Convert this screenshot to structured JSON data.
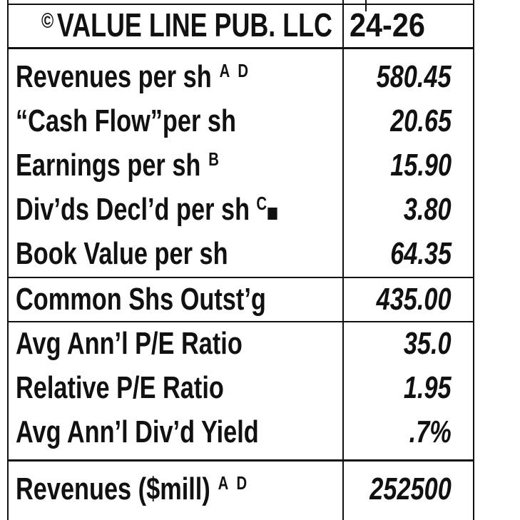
{
  "header": {
    "copyright_symbol": "©",
    "publisher": "VALUE LINE PUB. LLC",
    "period": "24-26"
  },
  "rows": [
    {
      "label": "Revenues per sh",
      "note": "A D",
      "value": "580.45"
    },
    {
      "label": "“Cash Flow”per sh",
      "note": "",
      "value": "20.65"
    },
    {
      "label": "Earnings per sh",
      "note": "B",
      "value": "15.90"
    },
    {
      "label": "Div’ds Decl’d per sh",
      "note": "C",
      "value": "3.80"
    },
    {
      "label": "Book Value per sh",
      "note": "",
      "value": "64.35"
    },
    {
      "label": "Common Shs Outst’g",
      "note": "",
      "value": "435.00"
    },
    {
      "label": "Avg Ann’l P/E Ratio",
      "note": "",
      "value": "35.0"
    },
    {
      "label": "Relative P/E Ratio",
      "note": "",
      "value": "1.95"
    },
    {
      "label": "Avg Ann’l Div’d Yield",
      "note": "",
      "value": ".7%"
    },
    {
      "label": "Revenues ($mill)",
      "note": "A D",
      "value": "252500"
    }
  ]
}
